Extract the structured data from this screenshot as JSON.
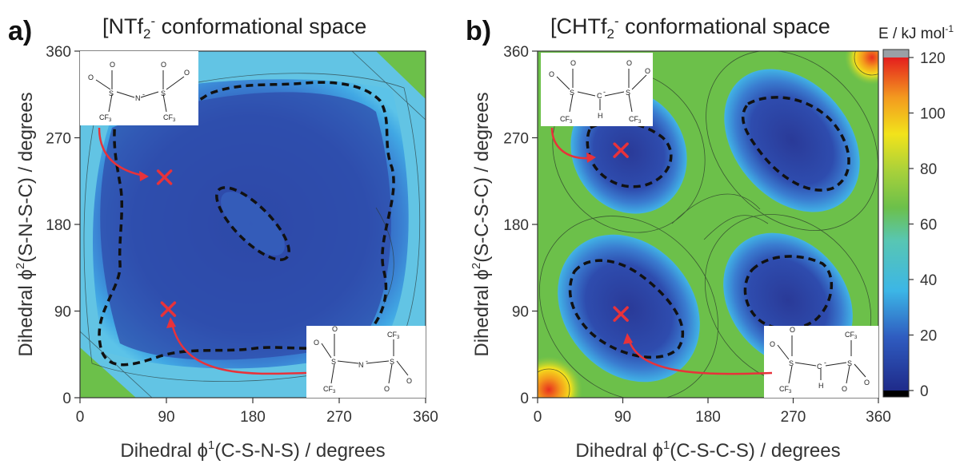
{
  "panels": [
    {
      "letter": "a)",
      "title_main": "[NTf",
      "title_sub": "2",
      "title_sup": "-",
      "title_rest": " conformational space",
      "xlabel_pre": "Dihedral ϕ",
      "xlabel_sup": "1",
      "xlabel_post": "(C-S-N-S) / degrees",
      "ylabel_pre": "Dihedral ϕ",
      "ylabel_sup": "2",
      "ylabel_post": "(S-N-S-C) / degrees",
      "molecule_top": {
        "atoms": [
          "O",
          "O",
          "O",
          "O",
          "S",
          "S",
          "N",
          "CF",
          "3",
          "CF",
          "3",
          "-"
        ]
      },
      "molecule_bottom": {
        "atoms": [
          "O",
          "O",
          "O",
          "O",
          "S",
          "S",
          "N",
          "CF",
          "3",
          "CF",
          "3",
          "-"
        ]
      }
    },
    {
      "letter": "b)",
      "title_main": "[CHTf",
      "title_sub": "2",
      "title_sup": "-",
      "title_rest": " conformational space",
      "xlabel_pre": "Dihedral ϕ",
      "xlabel_sup": "1",
      "xlabel_post": "(C-S-C-S) / degrees",
      "ylabel_pre": "Dihedral ϕ",
      "ylabel_sup": "2",
      "ylabel_post": "(S-C-S-C) / degrees",
      "molecule_top": {
        "atoms": [
          "O",
          "O",
          "O",
          "O",
          "S",
          "S",
          "C",
          "H",
          "CF",
          "3",
          "CF",
          "3",
          "-"
        ]
      },
      "molecule_bottom": {
        "atoms": [
          "O",
          "O",
          "O",
          "O",
          "S",
          "S",
          "C",
          "H",
          "CF",
          "3",
          "CF",
          "3",
          "-"
        ]
      }
    }
  ],
  "colorbar": {
    "label_pre": "E / kJ mol",
    "label_sup": "-1",
    "ticks": [
      "120",
      "100",
      "80",
      "60",
      "40",
      "20",
      "0"
    ]
  },
  "colors": {
    "low": "#2a3f9e",
    "mid": "#3cb6e6",
    "high": "#6cc04a",
    "top": "#e41e1e",
    "marker": "#e8323a"
  },
  "chart_data": [
    {
      "type": "heatmap",
      "title": "[NTf2]- conformational space",
      "xlabel": "Dihedral ϕ1(C-S-N-S) / degrees",
      "ylabel": "Dihedral ϕ2(S-N-S-C) / degrees",
      "xlim": [
        0,
        360
      ],
      "ylim": [
        0,
        360
      ],
      "xticks": [
        "0",
        "90",
        "180",
        "270",
        "360"
      ],
      "yticks": [
        "0",
        "90",
        "180",
        "270",
        "360"
      ],
      "zlabel": "E / kJ mol-1",
      "zlim": [
        0,
        120
      ],
      "minima": [
        {
          "phi1": 88,
          "phi2": 229
        },
        {
          "phi1": 92,
          "phi2": 92
        }
      ]
    },
    {
      "type": "heatmap",
      "title": "[CHTf2]- conformational space",
      "xlabel": "Dihedral ϕ1(C-S-C-S) / degrees",
      "ylabel": "Dihedral ϕ2(S-C-S-C) / degrees",
      "xlim": [
        0,
        360
      ],
      "ylim": [
        0,
        360
      ],
      "xticks": [
        "0",
        "90",
        "180",
        "270",
        "360"
      ],
      "yticks": [
        "0",
        "90",
        "180",
        "270",
        "360"
      ],
      "zlabel": "E / kJ mol-1",
      "zlim": [
        0,
        120
      ],
      "minima": [
        {
          "phi1": 88,
          "phi2": 257
        },
        {
          "phi1": 88,
          "phi2": 87
        }
      ]
    }
  ]
}
